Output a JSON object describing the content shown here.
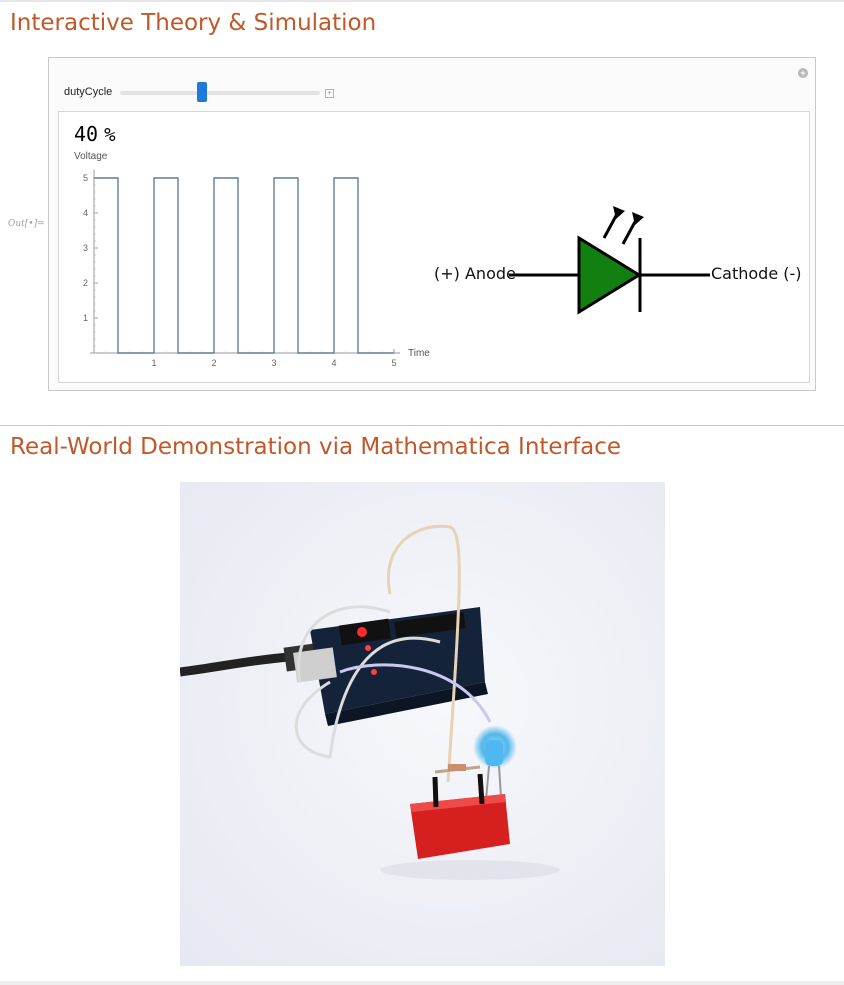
{
  "sections": {
    "theory_title": "Interactive Theory & Simulation",
    "demo_title": "Real-World Demonstration via Mathematica Interface"
  },
  "output_label": "Out[•]=",
  "manipulate": {
    "control_label": "dutyCycle",
    "slider_fraction": 0.4,
    "duty_value": "40",
    "duty_unit": "%"
  },
  "chart_data": {
    "type": "line",
    "title": "",
    "xlabel": "Time",
    "ylabel": "Voltage",
    "xlim": [
      0,
      5
    ],
    "ylim": [
      0,
      5
    ],
    "x_ticks": [
      1,
      2,
      3,
      4,
      5
    ],
    "y_ticks": [
      1,
      2,
      3,
      4,
      5
    ],
    "series": [
      {
        "x": [
          0,
          0.4,
          0.4,
          1,
          1,
          1.4,
          1.4,
          2,
          2,
          2.4,
          2.4,
          3,
          3,
          3.4,
          3.4,
          4,
          4,
          4.4,
          4.4,
          5
        ],
        "y": [
          5,
          5,
          0,
          0,
          5,
          5,
          0,
          0,
          5,
          5,
          0,
          0,
          5,
          5,
          0,
          0,
          5,
          5,
          0,
          0
        ]
      }
    ],
    "line_color": "#5e7f99",
    "grid": false
  },
  "led_diagram": {
    "anode_label": "(+) Anode",
    "cathode_label": "Cathode (-)",
    "fill_color": "#118011"
  }
}
